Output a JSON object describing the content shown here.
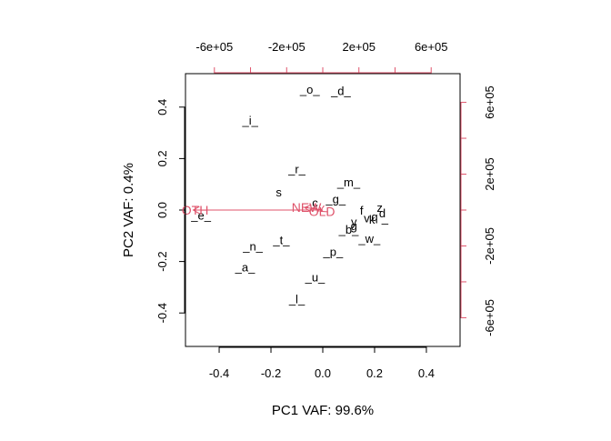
{
  "chart_data": {
    "type": "scatter",
    "subtype": "biplot",
    "title": "",
    "xlabel": "PC1 VAF: 99.6%",
    "ylabel": "PC2 VAF: 0.4%",
    "xlim": [
      -0.53,
      0.53
    ],
    "ylim": [
      -0.53,
      0.53
    ],
    "x_ticks": [
      -0.4,
      -0.2,
      0.0,
      0.2,
      0.4
    ],
    "y_ticks": [
      -0.4,
      -0.2,
      0.0,
      0.2,
      0.4
    ],
    "x_tick_labels": [
      "-0.4",
      "-0.2",
      "0.0",
      "0.2",
      "0.4"
    ],
    "y_tick_labels": [
      "-0.4",
      "-0.2",
      "0.0",
      "0.2",
      "0.4"
    ],
    "top_axis": {
      "lim": [
        -760000,
        760000
      ],
      "ticks": [
        -600000,
        -400000,
        -200000,
        0,
        200000,
        400000,
        600000
      ],
      "tick_labels": [
        "-6e+05",
        "",
        "-2e+05",
        "",
        "2e+05",
        "",
        "6e+05"
      ]
    },
    "right_axis": {
      "lim": [
        -760000,
        760000
      ],
      "ticks": [
        -600000,
        -400000,
        -200000,
        0,
        200000,
        400000,
        600000
      ],
      "tick_labels": [
        "-6e+05",
        "",
        "-2e+05",
        "",
        "2e+05",
        "",
        "6e+05"
      ]
    },
    "grid": false,
    "legend": "none",
    "observations": [
      {
        "label": "_o_",
        "x": -0.05,
        "y": 0.47
      },
      {
        "label": "_d_",
        "x": 0.07,
        "y": 0.465
      },
      {
        "label": "_i_",
        "x": -0.28,
        "y": 0.35
      },
      {
        "label": "_r_",
        "x": -0.1,
        "y": 0.16
      },
      {
        "label": "_m_",
        "x": 0.1,
        "y": 0.11
      },
      {
        "label": "s",
        "x": -0.17,
        "y": 0.07
      },
      {
        "label": "_g_",
        "x": 0.05,
        "y": 0.045
      },
      {
        "label": "c",
        "x": -0.03,
        "y": 0.03
      },
      {
        "label": "f",
        "x": 0.15,
        "y": 0.0
      },
      {
        "label": "z",
        "x": 0.22,
        "y": 0.01
      },
      {
        "label": "d",
        "x": 0.23,
        "y": -0.01
      },
      {
        "label": "q",
        "x": 0.2,
        "y": -0.025
      },
      {
        "label": "v",
        "x": 0.17,
        "y": -0.03
      },
      {
        "label": "k",
        "x": 0.19,
        "y": -0.035
      },
      {
        "label": "_",
        "x": 0.24,
        "y": -0.03
      },
      {
        "label": "y",
        "x": 0.12,
        "y": -0.045
      },
      {
        "label": "g",
        "x": 0.12,
        "y": -0.06
      },
      {
        "label": "_b_",
        "x": 0.1,
        "y": -0.075
      },
      {
        "label": "_e_",
        "x": -0.47,
        "y": -0.02
      },
      {
        "label": "_w_",
        "x": 0.18,
        "y": -0.11
      },
      {
        "label": "_t_",
        "x": -0.16,
        "y": -0.115
      },
      {
        "label": "_n_",
        "x": -0.27,
        "y": -0.14
      },
      {
        "label": "_p_",
        "x": 0.04,
        "y": -0.16
      },
      {
        "label": "_a_",
        "x": -0.3,
        "y": -0.22
      },
      {
        "label": "_u_",
        "x": -0.03,
        "y": -0.26
      },
      {
        "label": "_l_",
        "x": -0.1,
        "y": -0.345
      }
    ],
    "variables": [
      {
        "label": "OTH",
        "x": -0.5,
        "y": 0.0
      },
      {
        "label": "NEW",
        "x": -0.07,
        "y": 0.01
      },
      {
        "label": "OLD",
        "x": -0.01,
        "y": -0.005
      }
    ],
    "colors": {
      "points": "#000000",
      "arrows": "#DF536B",
      "axes": "#000000"
    }
  }
}
